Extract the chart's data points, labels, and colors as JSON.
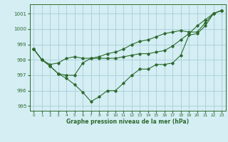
{
  "title": "Graphe pression niveau de la mer (hPa)",
  "bg_color": "#d4eef4",
  "grid_color": "#a8cdd6",
  "line_color": "#2d6a2d",
  "xlim": [
    -0.5,
    23.5
  ],
  "ylim": [
    994.7,
    1001.6
  ],
  "yticks": [
    995,
    996,
    997,
    998,
    999,
    1000,
    1001
  ],
  "xticks": [
    0,
    1,
    2,
    3,
    4,
    5,
    6,
    7,
    8,
    9,
    10,
    11,
    12,
    13,
    14,
    15,
    16,
    17,
    18,
    19,
    20,
    21,
    22,
    23
  ],
  "line1": [
    998.7,
    998.0,
    997.6,
    997.1,
    996.8,
    996.4,
    995.9,
    995.3,
    995.6,
    996.0,
    996.0,
    996.5,
    997.0,
    997.4,
    997.4,
    997.7,
    997.7,
    997.8,
    998.3,
    999.6,
    999.7,
    1000.2,
    1001.0,
    1001.2
  ],
  "line2": [
    998.7,
    998.0,
    997.7,
    997.8,
    998.1,
    998.2,
    998.1,
    998.1,
    998.1,
    998.1,
    998.1,
    998.2,
    998.3,
    998.4,
    998.4,
    998.5,
    998.6,
    998.9,
    999.3,
    999.7,
    1000.2,
    1000.6,
    1001.0,
    1001.2
  ],
  "line3": [
    998.7,
    998.0,
    997.6,
    997.1,
    997.0,
    997.0,
    997.8,
    998.1,
    998.2,
    998.4,
    998.5,
    998.7,
    999.0,
    999.2,
    999.3,
    999.5,
    999.7,
    999.8,
    999.9,
    999.8,
    999.8,
    1000.4,
    1001.0,
    1001.2
  ]
}
